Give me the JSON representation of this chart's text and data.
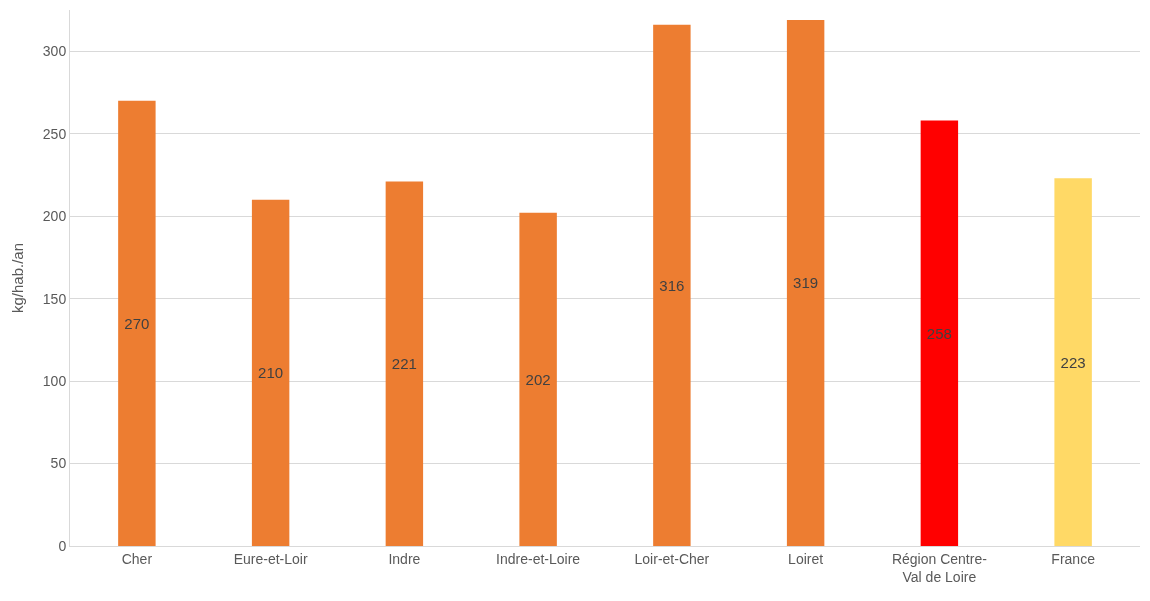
{
  "chart_data": {
    "type": "bar",
    "ylabel": "kg/hab./an",
    "categories": [
      "Cher",
      "Eure-et-Loir",
      "Indre",
      "Indre-et-Loire",
      "Loir-et-Cher",
      "Loiret",
      "Région Centre-Val de Loire",
      "France"
    ],
    "values": [
      270,
      210,
      221,
      202,
      316,
      319,
      258,
      223
    ],
    "colors": [
      "#ed7d31",
      "#ed7d31",
      "#ed7d31",
      "#ed7d31",
      "#ed7d31",
      "#ed7d31",
      "#ff0000",
      "#ffd966"
    ],
    "ylim": [
      0,
      325
    ],
    "yticks": [
      0,
      50,
      100,
      150,
      200,
      250,
      300
    ],
    "grid": "y",
    "data_labels": true
  }
}
